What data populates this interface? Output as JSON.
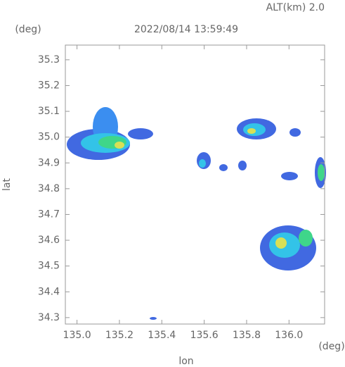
{
  "chart_data": {
    "type": "map",
    "title": "2022/08/14 13:59:49",
    "subtitle": "ALT(km) 2.0",
    "y_unit": "(deg)",
    "x_unit": "(deg)",
    "x_label": "lon",
    "y_label": "lat",
    "xlim": [
      134.945,
      136.168
    ],
    "ylim": [
      34.275,
      35.357
    ],
    "xticks": [
      {
        "value": 135.0,
        "label": "135.0"
      },
      135.2,
      135.4,
      135.6,
      135.8,
      {
        "value": 136.0,
        "label": "136.0"
      }
    ],
    "yticks": [
      34.3,
      34.4,
      34.5,
      34.6,
      34.7,
      34.8,
      34.9,
      {
        "value": 35.0,
        "label": "35.0"
      },
      35.1,
      35.2,
      35.3
    ]
  }
}
